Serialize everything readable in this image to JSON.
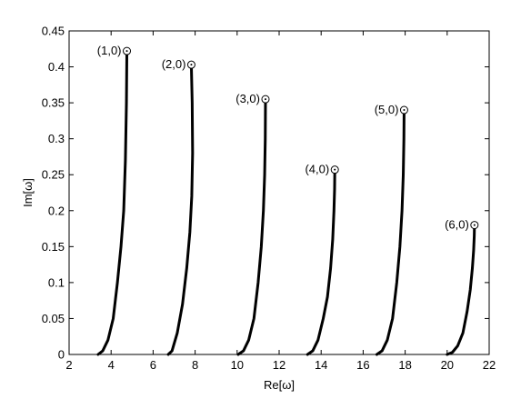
{
  "chart_data": {
    "type": "line",
    "title": "",
    "xlabel": "Re[ω]",
    "ylabel": "Im[ω]",
    "xlim": [
      2,
      22
    ],
    "ylim": [
      0,
      0.45
    ],
    "xticks": [
      2,
      4,
      6,
      8,
      10,
      12,
      14,
      16,
      18,
      20,
      22
    ],
    "yticks": [
      0,
      0.05,
      0.1,
      0.15,
      0.2,
      0.25,
      0.3,
      0.35,
      0.4,
      0.45
    ],
    "xtick_labels": [
      "2",
      "4",
      "6",
      "8",
      "10",
      "12",
      "14",
      "16",
      "18",
      "20",
      "22"
    ],
    "ytick_labels": [
      "0",
      "0.05",
      "0.1",
      "0.15",
      "0.2",
      "0.25",
      "0.3",
      "0.35",
      "0.4",
      "0.45"
    ],
    "grid": false,
    "line_color": "#000000",
    "series": [
      {
        "label": "(1,0)",
        "endpoint": [
          4.75,
          0.422
        ],
        "x": [
          3.38,
          3.6,
          3.85,
          4.1,
          4.3,
          4.47,
          4.6,
          4.68,
          4.73,
          4.75
        ],
        "y": [
          0.0,
          0.005,
          0.02,
          0.05,
          0.1,
          0.15,
          0.2,
          0.27,
          0.35,
          0.422
        ]
      },
      {
        "label": "(2,0)",
        "endpoint": [
          7.82,
          0.403
        ],
        "x": [
          6.72,
          6.9,
          7.15,
          7.4,
          7.6,
          7.75,
          7.84,
          7.88,
          7.86,
          7.82
        ],
        "y": [
          0.0,
          0.005,
          0.03,
          0.07,
          0.12,
          0.17,
          0.22,
          0.28,
          0.35,
          0.403
        ]
      },
      {
        "label": "(3,0)",
        "endpoint": [
          11.35,
          0.355
        ],
        "x": [
          10.05,
          10.3,
          10.55,
          10.8,
          11.0,
          11.15,
          11.25,
          11.31,
          11.34,
          11.35
        ],
        "y": [
          0.0,
          0.005,
          0.02,
          0.05,
          0.1,
          0.15,
          0.2,
          0.25,
          0.3,
          0.355
        ]
      },
      {
        "label": "(4,0)",
        "endpoint": [
          14.65,
          0.257
        ],
        "x": [
          13.35,
          13.6,
          13.85,
          14.1,
          14.3,
          14.45,
          14.55,
          14.61,
          14.64,
          14.65
        ],
        "y": [
          0.0,
          0.005,
          0.02,
          0.05,
          0.08,
          0.12,
          0.16,
          0.2,
          0.23,
          0.257
        ]
      },
      {
        "label": "(5,0)",
        "endpoint": [
          17.95,
          0.34
        ],
        "x": [
          16.65,
          16.9,
          17.15,
          17.4,
          17.6,
          17.75,
          17.85,
          17.91,
          17.94,
          17.95
        ],
        "y": [
          0.0,
          0.005,
          0.02,
          0.05,
          0.1,
          0.15,
          0.2,
          0.25,
          0.3,
          0.34
        ]
      },
      {
        "label": "(6,0)",
        "endpoint": [
          21.3,
          0.18
        ],
        "x": [
          20.0,
          20.25,
          20.5,
          20.75,
          20.95,
          21.1,
          21.2,
          21.26,
          21.29,
          21.3
        ],
        "y": [
          0.0,
          0.003,
          0.012,
          0.03,
          0.06,
          0.09,
          0.12,
          0.145,
          0.165,
          0.18
        ]
      }
    ]
  }
}
